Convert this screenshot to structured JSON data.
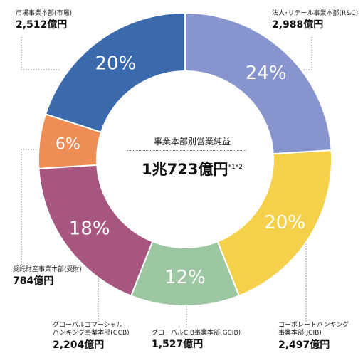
{
  "chart_data": {
    "type": "pie",
    "style": "donut",
    "title": "事業本部別営業純益",
    "total": "1兆723億円",
    "total_note": "*1*2",
    "slices": [
      {
        "label": "法人・リテール事業本部(R&C)",
        "value_label": "2,988億円",
        "percent": 24,
        "percent_label": "24%",
        "color": "#8794cd"
      },
      {
        "label": "コーポレートバンキング事業本部(JCIB)",
        "value_label": "2,497億円",
        "percent": 20,
        "percent_label": "20%",
        "color": "#f5d04a"
      },
      {
        "label": "グローバルCIB事業本部(GCIB)",
        "value_label": "1,527億円",
        "percent": 12,
        "percent_label": "12%",
        "color": "#9dc7a3"
      },
      {
        "label": "グローバルコマーシャルバンキング事業本部(GCB)",
        "value_label": "2,204億円",
        "percent": 18,
        "percent_label": "18%",
        "color": "#a6567f"
      },
      {
        "label": "受託財産事業本部(受財)",
        "value_label": "784億円",
        "percent": 6,
        "percent_label": "6%",
        "color": "#ee8d55"
      },
      {
        "label": "市場事業本部(市場)",
        "value_label": "2,512億円",
        "percent": 20,
        "percent_label": "20%",
        "color": "#3a69ac"
      }
    ]
  },
  "labels": {
    "rc": {
      "name": "法人･リテール事業本部(R&C)",
      "value": "2,988億円"
    },
    "jcib": {
      "name1": "コーポレートバンキング",
      "name2": "事業本部(JCIB)",
      "value": "2,497億円"
    },
    "gcib": {
      "name": "グローバルCIB事業本部(GCIB)",
      "value": "1,527億円"
    },
    "gcb": {
      "name1": "グローバルコマーシャル",
      "name2": "バンキング事業本部(GCB)",
      "value": "2,204億円"
    },
    "trust": {
      "name": "受託財産事業本部(受財)",
      "value": "784億円"
    },
    "market": {
      "name": "市場事業本部(市場)",
      "value": "2,512億円"
    }
  }
}
